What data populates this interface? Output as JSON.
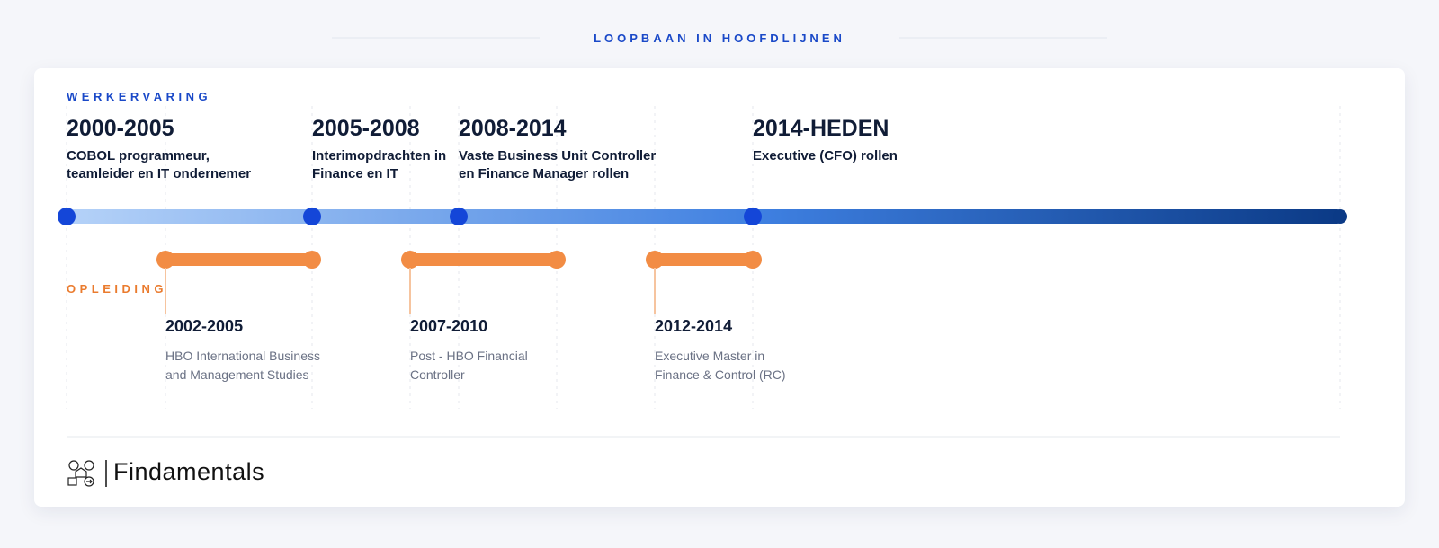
{
  "header": {
    "title": "LOOPBAAN IN HOOFDLIJNEN"
  },
  "work": {
    "label": "WERKERVARING",
    "items": [
      {
        "period": "2000-2005",
        "lines": [
          "COBOL programmeur,",
          "teamleider en IT ondernemer"
        ]
      },
      {
        "period": "2005-2008",
        "lines": [
          "Interimopdrachten in",
          "Finance en IT"
        ]
      },
      {
        "period": "2008-2014",
        "lines": [
          "Vaste Business Unit Controller",
          "en Finance Manager rollen"
        ]
      },
      {
        "period": "2014-HEDEN",
        "lines": [
          "Executive (CFO) rollen"
        ]
      }
    ]
  },
  "education": {
    "label": "OPLEIDING",
    "items": [
      {
        "period": "2002-2005",
        "lines": [
          "HBO International Business",
          "and Management Studies"
        ]
      },
      {
        "period": "2007-2010",
        "lines": [
          "Post - HBO Financial",
          "Controller"
        ]
      },
      {
        "period": "2012-2014",
        "lines": [
          "Executive Master in",
          "Finance & Control (RC)"
        ]
      }
    ]
  },
  "footer": {
    "brand": "Findamentals"
  }
}
